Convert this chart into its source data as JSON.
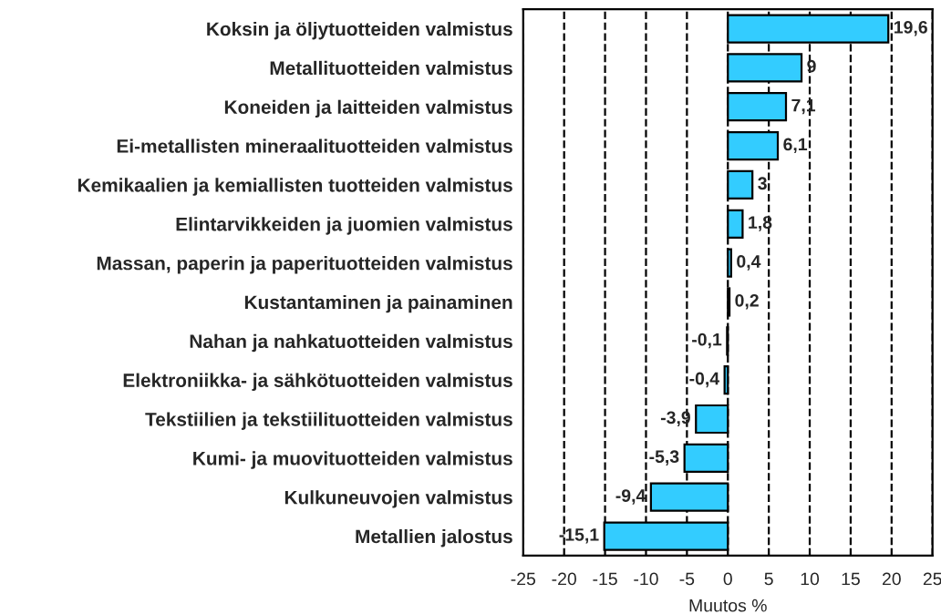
{
  "chart_data": {
    "type": "bar",
    "orientation": "horizontal",
    "xlabel": "Muutos %",
    "categories": [
      "Koksin ja öljytuotteiden valmistus",
      "Metallituotteiden valmistus",
      "Koneiden ja laitteiden valmistus",
      "Ei-metallisten mineraalituotteiden valmistus",
      "Kemikaalien ja kemiallisten tuotteiden valmistus",
      "Elintarvikkeiden ja juomien valmistus",
      "Massan, paperin ja paperituotteiden valmistus",
      "Kustantaminen ja painaminen",
      "Nahan ja nahkatuotteiden valmistus",
      "Elektroniikka- ja sähkötuotteiden valmistus",
      "Tekstiilien ja tekstiilituotteiden valmistus",
      "Kumi- ja muovituotteiden valmistus",
      "Kulkuneuvojen valmistus",
      "Metallien jalostus"
    ],
    "values": [
      19.6,
      9,
      7.1,
      6.1,
      3,
      1.8,
      0.4,
      0.2,
      -0.1,
      -0.4,
      -3.9,
      -5.3,
      -9.4,
      -15.1
    ],
    "value_labels": [
      "19,6",
      "9",
      "7,1",
      "6,1",
      "3",
      "1,8",
      "0,4",
      "0,2",
      "-0,1",
      "-0,4",
      "-3,9",
      "-5,3",
      "-9,4",
      "-15,1"
    ],
    "color": "#33ccff",
    "xlim": [
      -25,
      25
    ],
    "xticks": [
      -25,
      -20,
      -15,
      -10,
      -5,
      0,
      5,
      10,
      15,
      20,
      25
    ],
    "grid": "x",
    "line_style": "dashed"
  }
}
